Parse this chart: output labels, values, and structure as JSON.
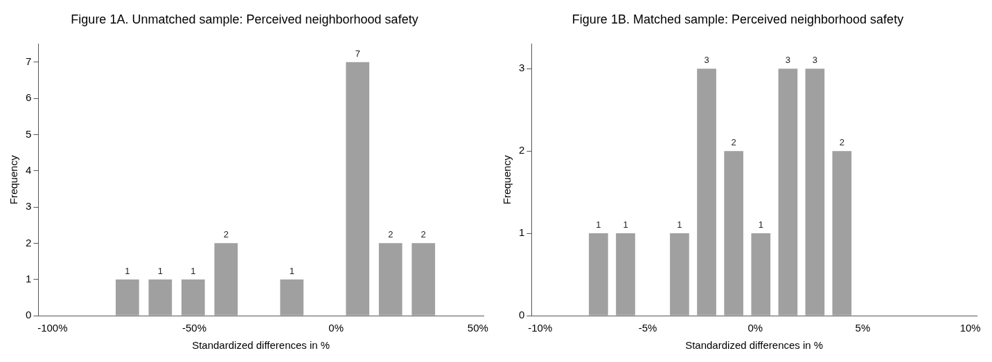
{
  "chart_data": [
    {
      "type": "histogram",
      "title": "Figure 1A. Unmatched sample: Perceived neighborhood safety",
      "xlabel": "Standardized differences in %",
      "ylabel": "Frequency",
      "bins": [
        -79.4,
        -67.8,
        -56.2,
        -44.6,
        -33,
        -21.4,
        -9.8,
        1.8,
        13.4,
        25,
        36.6
      ],
      "values": [
        1,
        1,
        1,
        2,
        0,
        1,
        0,
        7,
        2,
        2
      ],
      "value_labels": [
        "1",
        "1",
        "1",
        "2",
        null,
        "1",
        null,
        "7",
        "2",
        "2"
      ],
      "color": "#a0a0a0",
      "xlim": [
        -105,
        52
      ],
      "xticks": [
        {
          "value": -100,
          "label": "-100%"
        },
        {
          "value": -50,
          "label": "-50%"
        },
        {
          "value": 0,
          "label": "0%"
        },
        {
          "value": 50,
          "label": "50%"
        }
      ],
      "ylim": [
        0,
        7.5
      ],
      "yticks": [
        0,
        1,
        2,
        3,
        4,
        5,
        6,
        7
      ],
      "grid": false,
      "legend": false
    },
    {
      "type": "histogram",
      "title": "Figure 1B. Matched sample: Perceived neighborhood safety",
      "xlabel": "Standardized differences in %",
      "ylabel": "Frequency",
      "bins": [
        -7.92,
        -6.66,
        -5.4,
        -4.15,
        -2.89,
        -1.63,
        -0.37,
        0.89,
        2.15,
        3.4,
        4.66
      ],
      "values": [
        1,
        1,
        0,
        1,
        3,
        2,
        1,
        3,
        3,
        2
      ],
      "value_labels": [
        "1",
        "1",
        null,
        "1",
        "3",
        "2",
        "1",
        "3",
        "3",
        "2"
      ],
      "color": "#a0a0a0",
      "xlim": [
        -10.4,
        10.3
      ],
      "xticks": [
        {
          "value": -10,
          "label": "-10%"
        },
        {
          "value": -5,
          "label": "-5%"
        },
        {
          "value": 0,
          "label": "0%"
        },
        {
          "value": 5,
          "label": "5%"
        },
        {
          "value": 10,
          "label": "10%"
        }
      ],
      "ylim": [
        0,
        3.3
      ],
      "yticks": [
        0,
        1,
        2,
        3
      ],
      "grid": false,
      "legend": false
    }
  ]
}
